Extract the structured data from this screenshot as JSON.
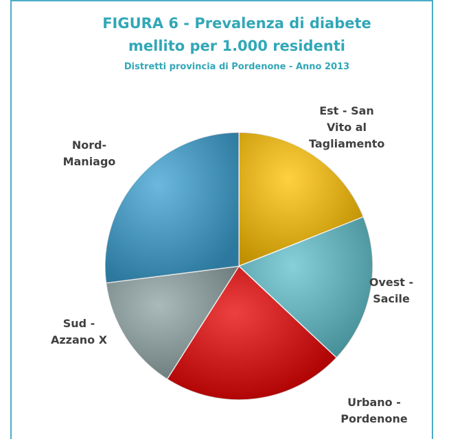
{
  "chart_data": {
    "type": "pie",
    "title": "FIGURA 6 - Prevalenza di diabete mellito per 1.000 residenti",
    "subtitle": "Distretti provincia di Pordenone - Anno 2013",
    "categories": [
      "Est - San Vito al Tagliamento",
      "Ovest - Sacile",
      "Urbano - Pordenone",
      "Sud - Azzano X",
      "Nord-Maniago"
    ],
    "values": [
      19,
      18,
      22,
      14,
      27
    ],
    "colors": [
      "#ffc000",
      "#5fc0cc",
      "#e60000",
      "#8ea3a3",
      "#3aa0d2"
    ]
  }
}
